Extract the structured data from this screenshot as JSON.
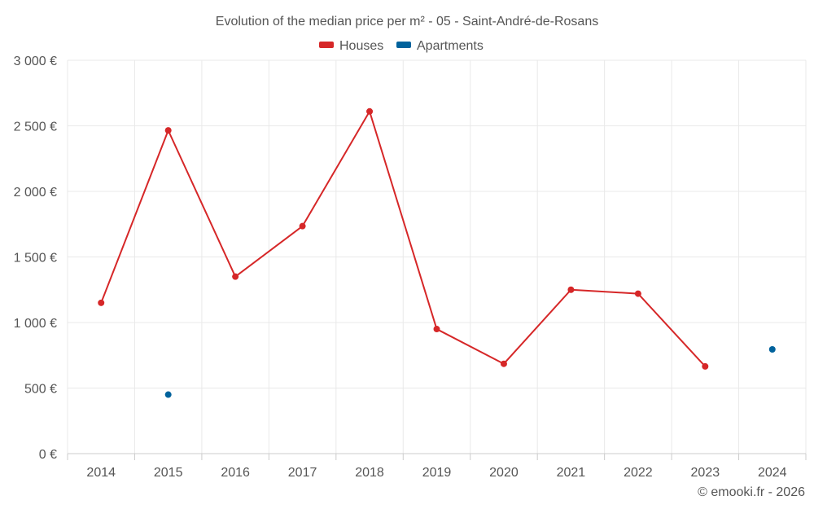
{
  "chart_data": {
    "type": "line",
    "title": "Evolution of the median price per m² - 05 - Saint-André-de-Rosans",
    "x": [
      "2014",
      "2015",
      "2016",
      "2017",
      "2018",
      "2019",
      "2020",
      "2021",
      "2022",
      "2023",
      "2024"
    ],
    "series": [
      {
        "name": "Houses",
        "color": "#d62728",
        "values": [
          1150,
          2465,
          1350,
          1735,
          2610,
          950,
          685,
          1250,
          1220,
          665,
          null
        ]
      },
      {
        "name": "Apartments",
        "color": "#00629c",
        "values": [
          null,
          450,
          null,
          null,
          null,
          null,
          null,
          null,
          null,
          null,
          795
        ]
      }
    ],
    "ylim": [
      0,
      3000
    ],
    "yticks": [
      0,
      500,
      1000,
      1500,
      2000,
      2500,
      3000
    ],
    "ytick_labels": [
      "0 €",
      "500 €",
      "1 000 €",
      "1 500 €",
      "2 000 €",
      "2 500 €",
      "3 000 €"
    ],
    "grid": true,
    "legend_position": "top-center"
  },
  "credit": "© emooki.fr - 2026"
}
